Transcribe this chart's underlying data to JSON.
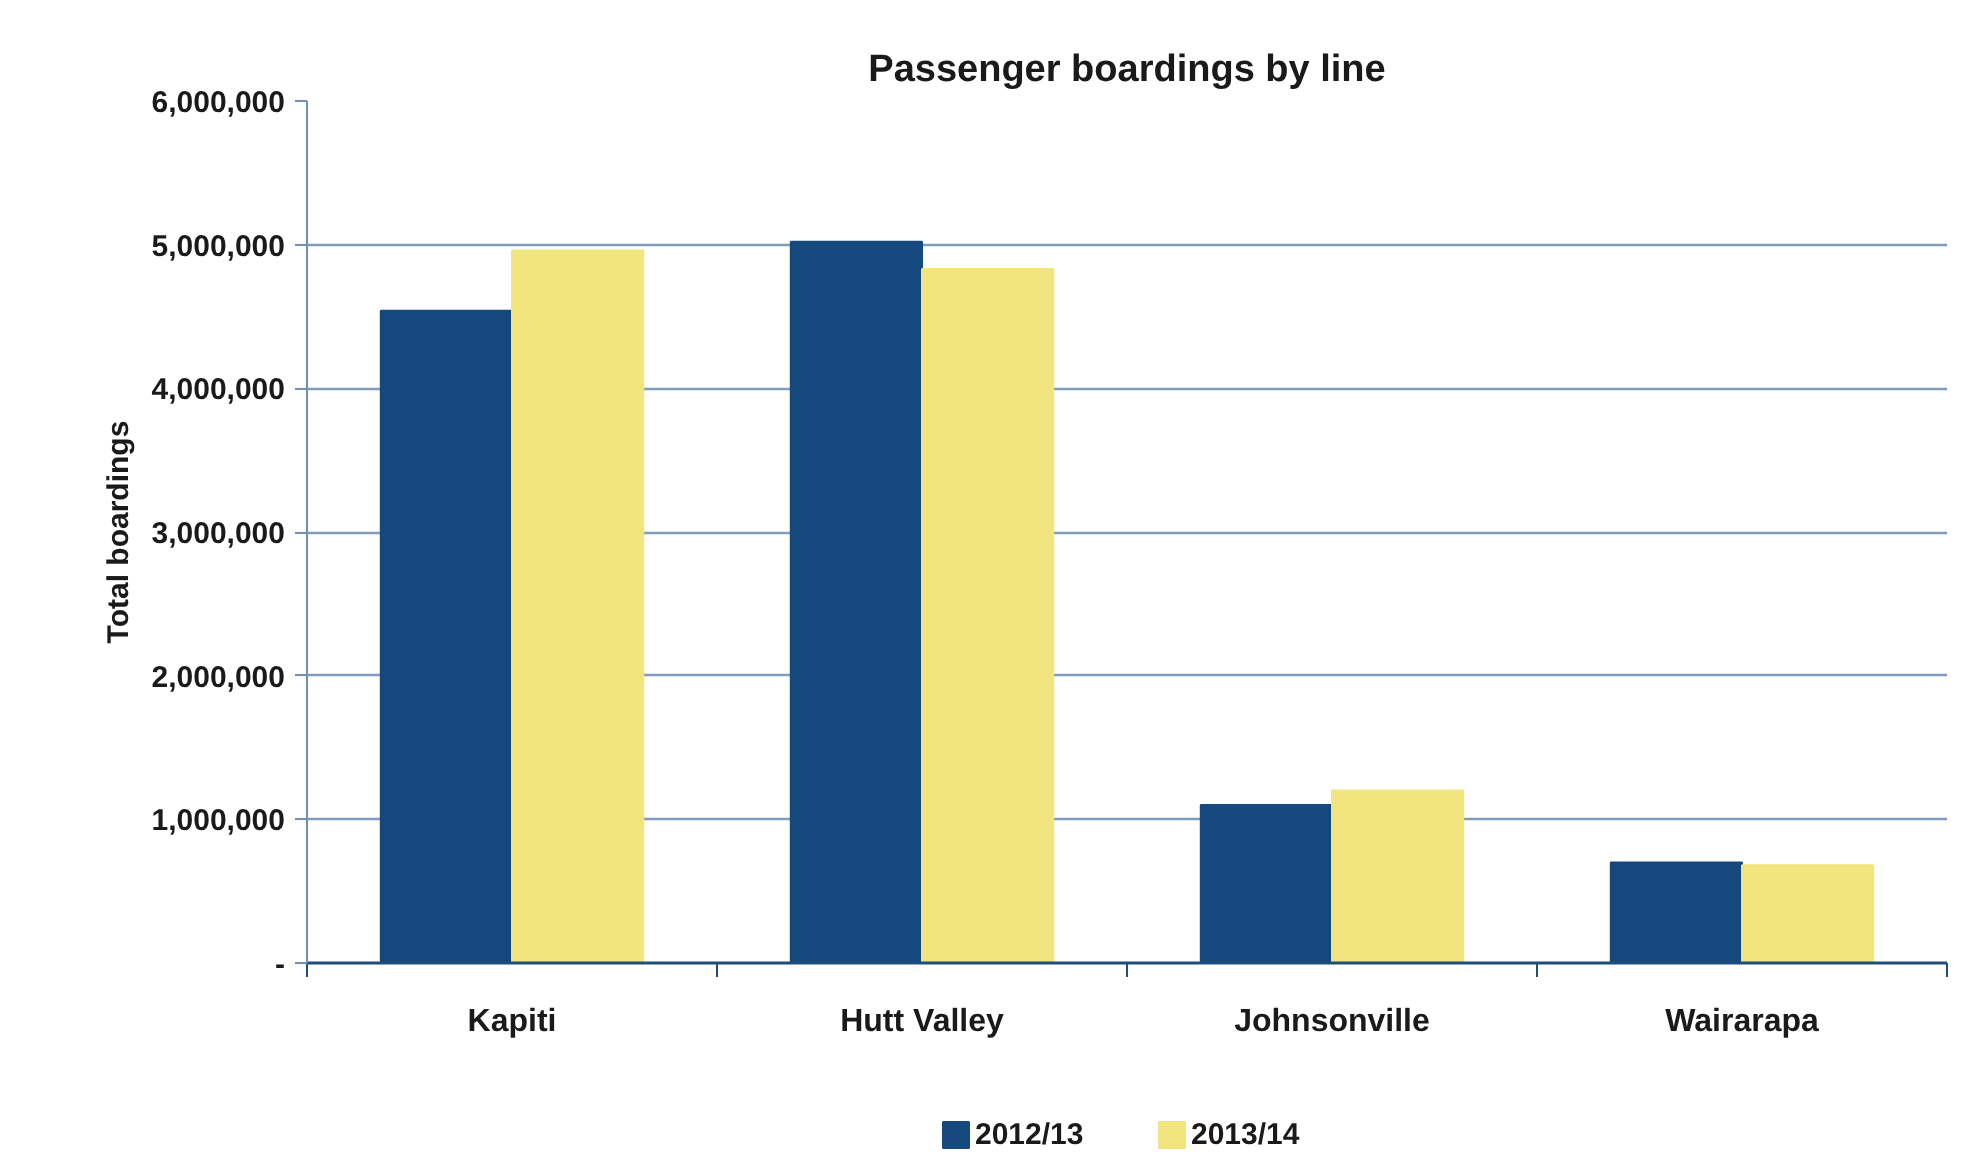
{
  "chart_data": {
    "type": "bar",
    "title": "Passenger boardings by line",
    "ylabel": "Total boardings",
    "categories": [
      "Kapiti",
      "Hutt Valley",
      "Johnsonville",
      "Wairarapa"
    ],
    "series": [
      {
        "name": "2012/13",
        "color": "#15497d",
        "values": [
          4540000,
          5020000,
          1100000,
          700000
        ]
      },
      {
        "name": "2013/14",
        "color": "#f2e580",
        "values": [
          4960000,
          4830000,
          1200000,
          680000
        ]
      }
    ],
    "ylim": [
      0,
      6000000
    ],
    "yticks": [
      {
        "value": 0,
        "label": "-"
      },
      {
        "value": 1000000,
        "label": "1,000,000"
      },
      {
        "value": 2000000,
        "label": "2,000,000"
      },
      {
        "value": 3000000,
        "label": "3,000,000"
      },
      {
        "value": 4000000,
        "label": "4,000,000"
      },
      {
        "value": 5000000,
        "label": "5,000,000"
      },
      {
        "value": 6000000,
        "label": "6,000,000"
      }
    ],
    "grid": "y",
    "legend": "bottom"
  }
}
